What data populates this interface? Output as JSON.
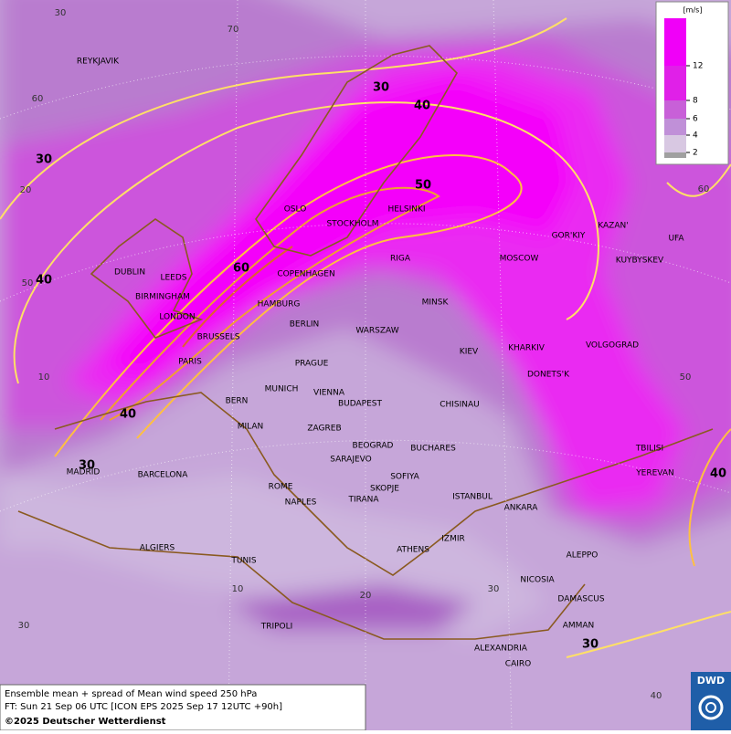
{
  "legend": {
    "unit": "[m/s]",
    "ticks": [
      2,
      4,
      6,
      8,
      12
    ]
  },
  "cities": [
    "REYKJAVIK",
    "OSLO",
    "STOCKHOLM",
    "HELSINKI",
    "GOR'KIY",
    "KAZAN'",
    "UFA",
    "DUBLIN",
    "LEEDS",
    "RIGA",
    "MOSCOW",
    "KUYBYSKEV",
    "COPENHAGEN",
    "BIRMINGHAM",
    "HAMBURG",
    "MINSK",
    "LONDON",
    "BERLIN",
    "WARSZAW",
    "BRUSSELS",
    "KHARKIV",
    "VOLGOGRAD",
    "KIEV",
    "PARIS",
    "PRAGUE",
    "DONETS'K",
    "MUNICH",
    "VIENNA",
    "BERN",
    "BUDAPEST",
    "CHISINAU",
    "MILAN",
    "ZAGREB",
    "BEOGRAD",
    "BUCHARES",
    "TBILISI",
    "MADRID",
    "BARCELONA",
    "YEREVAN",
    "SARAJEVO",
    "SOFIYA",
    "ROME",
    "SKOPJE",
    "TIRANA",
    "ISTANBUL",
    "NAPLES",
    "ANKARA",
    "ALGIERS",
    "ATHENS",
    "IZMIR",
    "ALEPPO",
    "TUNIS",
    "NICOSIA",
    "DAMASCUS",
    "TRIPOLI",
    "AMMAN",
    "ALEXANDRIA",
    "CAIRO"
  ],
  "contour_labels": [
    30,
    40,
    50,
    60,
    30,
    40,
    40,
    30,
    40,
    30
  ],
  "graticule_labels": [
    30,
    70,
    60,
    20,
    50,
    10,
    30,
    10,
    20,
    30,
    40,
    60,
    50
  ],
  "caption": {
    "line1": "Ensemble mean + spread of Mean wind speed 250 hPa",
    "line2": "FT: Sun 21 Sep 06 UTC [ICON EPS 2025 Sep 17 12UTC +90h]",
    "line3": "©2025 Deutscher Wetterdienst"
  },
  "logo": "DWD"
}
